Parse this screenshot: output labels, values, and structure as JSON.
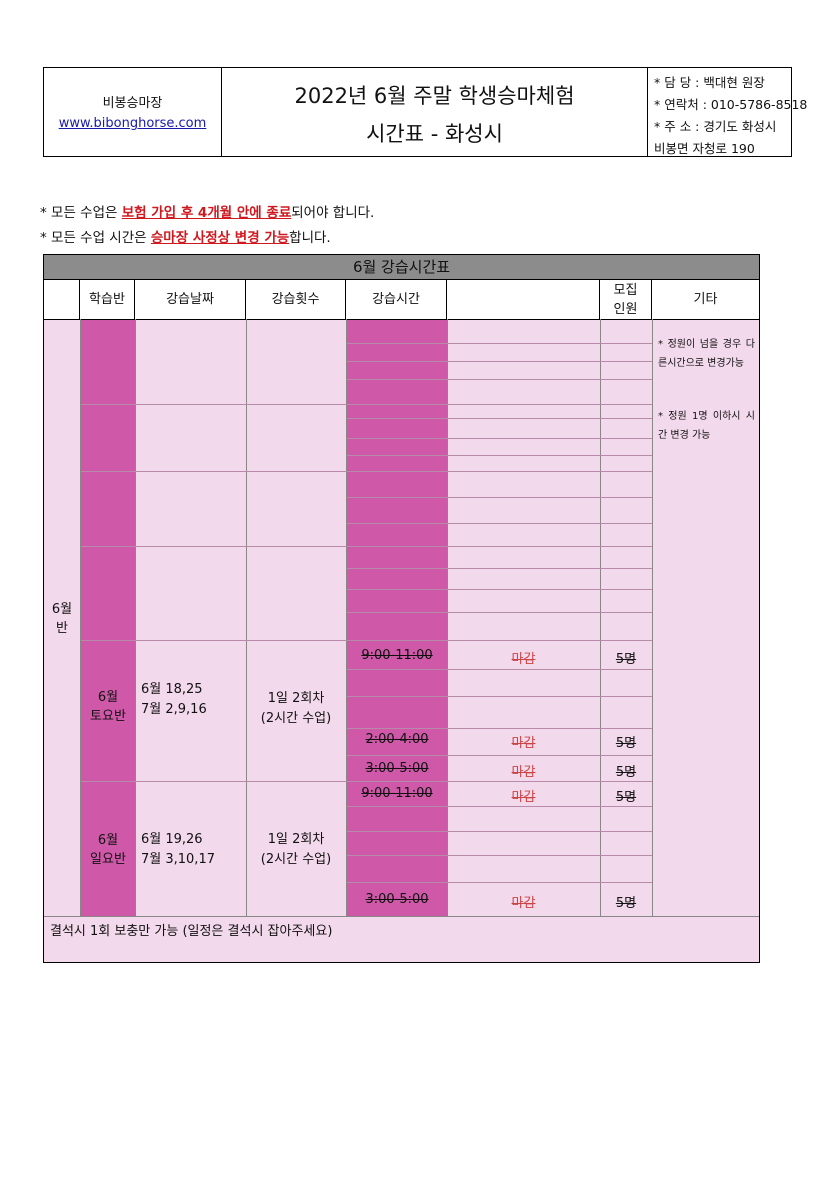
{
  "header": {
    "brand": "비봉승마장",
    "url": "www.bibonghorse.com",
    "title_line1": "2022년 6월 주말 학생승마체험",
    "title_line2": "시간표 - 화성시",
    "contact": [
      "* 담  당 : 백대현 원장",
      "* 연락처 : 010-5786-8518",
      "* 주  소 : 경기도 화성시",
      "비봉면 자청로 190"
    ]
  },
  "notes": {
    "n1_pre": "* 모든 수업은 ",
    "n1_red": "보험 가입 후 4개월 안에 종료",
    "n1_post": "되어야 합니다.",
    "n2_pre": "* 모든 수업 시간은 ",
    "n2_red": "승마장 사정상 변경 가능",
    "n2_post": "합니다."
  },
  "table": {
    "title": "6월 강습시간표",
    "headers": {
      "class": "학습반",
      "date": "강습날짜",
      "count": "강습횟수",
      "time": "강습시간",
      "recruit": "모집\n인원",
      "etc": "기타"
    },
    "month_label": "6월\n반",
    "etc_note1": "* 정원이 넘을 경우 다른시간으로 변경가능",
    "etc_note2": "* 정원 1명 이하시 시간 변경 가능",
    "saturday": {
      "label": "6월\n토요반",
      "dates": "6월 18,25\n7월 2,9,16",
      "count": "1일 2회차\n(2시간 수업)",
      "slots": [
        {
          "time": "9:00-11:00",
          "status": "마감",
          "people": "5명"
        },
        {
          "time": "2:00-4:00",
          "status": "마감",
          "people": "5명"
        },
        {
          "time": "3:00-5:00",
          "status": "마감",
          "people": "5명"
        }
      ]
    },
    "sunday": {
      "label": "6월\n일요반",
      "dates": "6월 19,26\n7월 3,10,17",
      "count": "1일 2회차\n(2시간 수업)",
      "slots": [
        {
          "time": "9:00-11:00",
          "status": "마감",
          "people": "5명"
        },
        {
          "time": "3:00-5:00",
          "status": "마감",
          "people": "5명"
        }
      ]
    },
    "footer": "결석시 1회 보충만 가능 (일정은 결석시 잡아주세요)"
  }
}
